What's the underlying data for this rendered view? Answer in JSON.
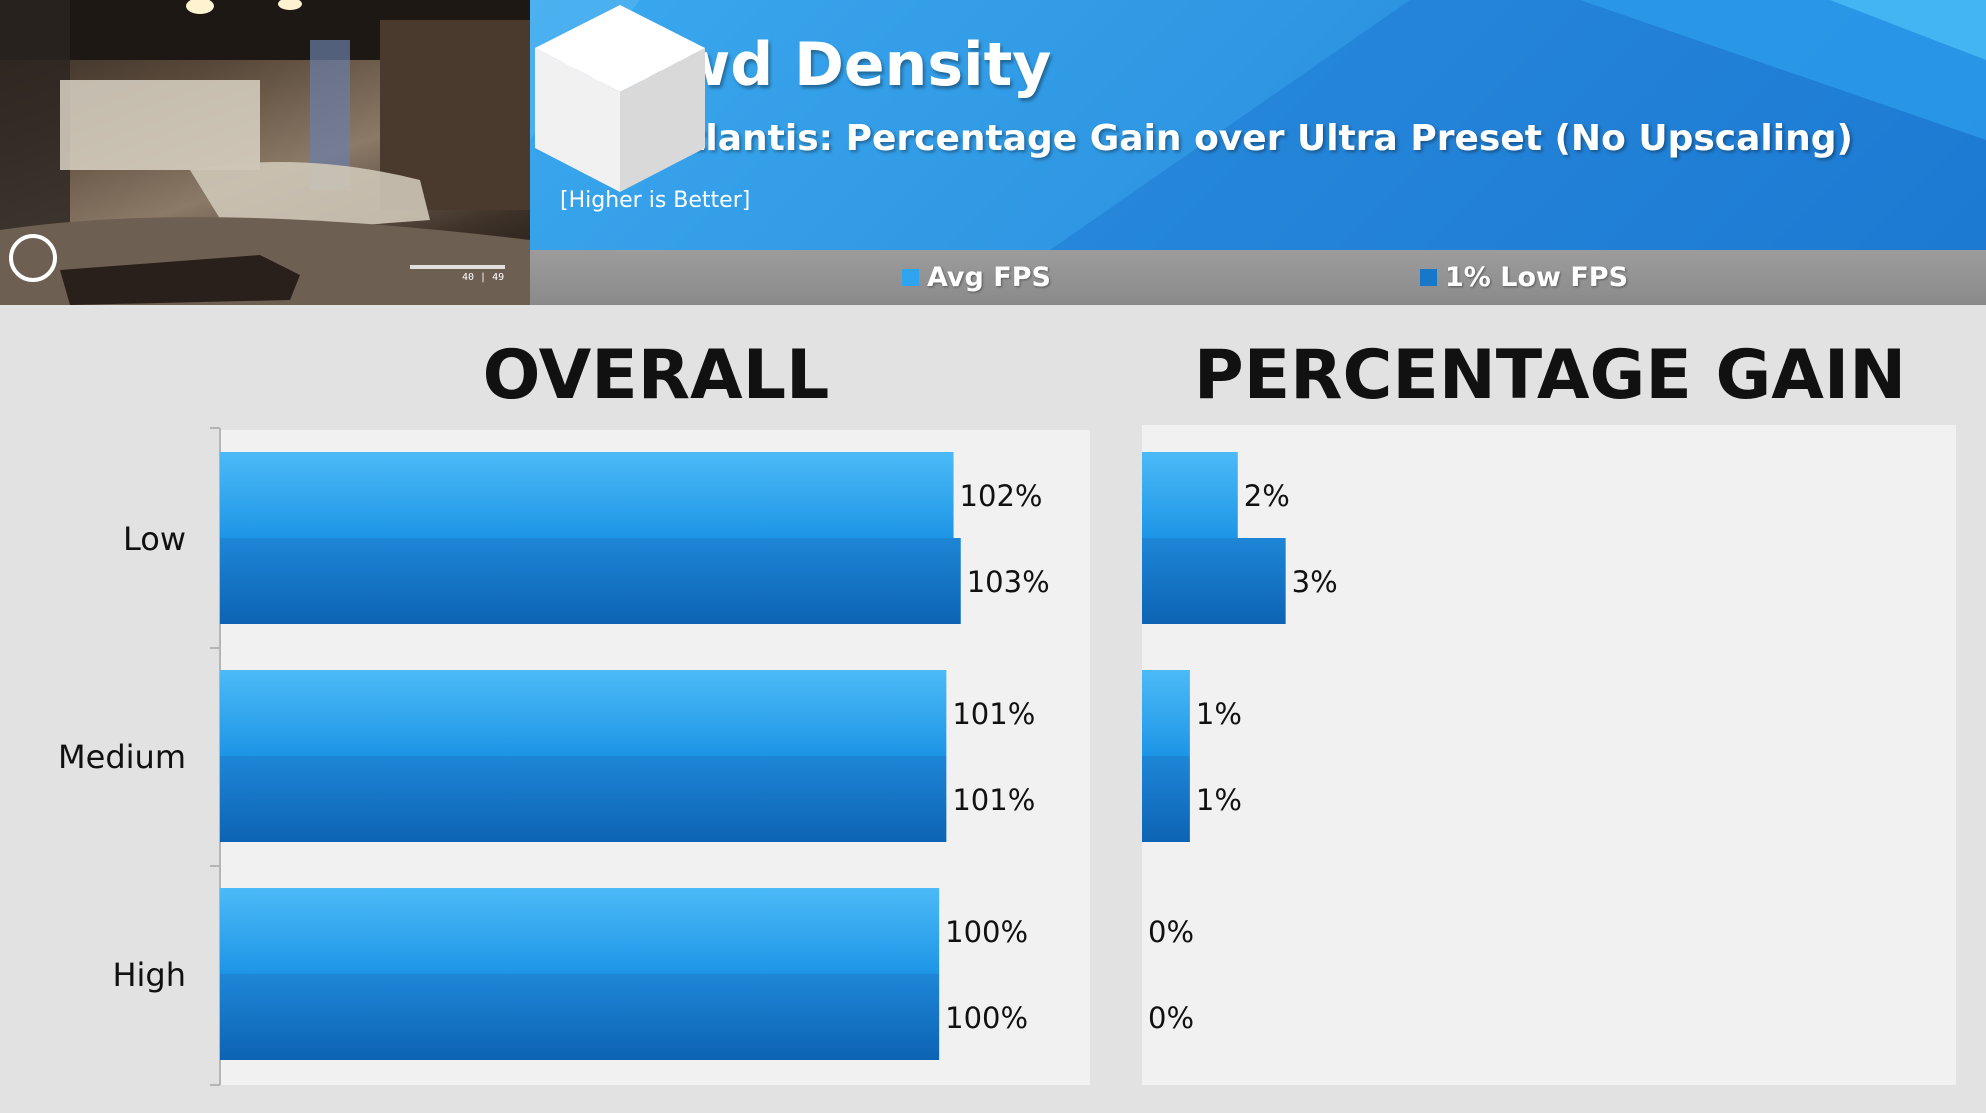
{
  "header": {
    "title": "Crowd Density",
    "subtitle": "New Atlantis: Percentage Gain over Ultra Preset (No Upscaling)",
    "note": "[Higher is Better]",
    "ammo_counter": "40 | 49"
  },
  "legend": [
    {
      "label": "Avg FPS",
      "color": "#2fa4f0"
    },
    {
      "label": "1% Low FPS",
      "color": "#1777c9"
    }
  ],
  "colors": {
    "banner": "#2f97e3",
    "legend_bar": "#939393",
    "panel": "#f1f1f1",
    "background": "#e2e2e2"
  },
  "chart_data": [
    {
      "type": "bar",
      "orientation": "horizontal",
      "title": "OVERALL",
      "categories": [
        "Low",
        "Medium",
        "High"
      ],
      "series": [
        {
          "name": "Avg FPS",
          "values": [
            102,
            101,
            100
          ],
          "labels": [
            "102%",
            "101%",
            "100%"
          ]
        },
        {
          "name": "1% Low FPS",
          "values": [
            103,
            101,
            100
          ],
          "labels": [
            "103%",
            "101%",
            "100%"
          ]
        }
      ],
      "xlim": [
        0,
        120
      ],
      "grid": false,
      "legend": "top"
    },
    {
      "type": "bar",
      "orientation": "horizontal",
      "title": "PERCENTAGE GAIN",
      "categories": [
        "Low",
        "Medium",
        "High"
      ],
      "series": [
        {
          "name": "Avg FPS",
          "values": [
            2,
            1,
            0
          ],
          "labels": [
            "2%",
            "1%",
            "0%"
          ]
        },
        {
          "name": "1% Low FPS",
          "values": [
            3,
            1,
            0
          ],
          "labels": [
            "3%",
            "1%",
            "0%"
          ]
        }
      ],
      "xlim": [
        0,
        17
      ],
      "grid": false,
      "legend": "top"
    }
  ]
}
